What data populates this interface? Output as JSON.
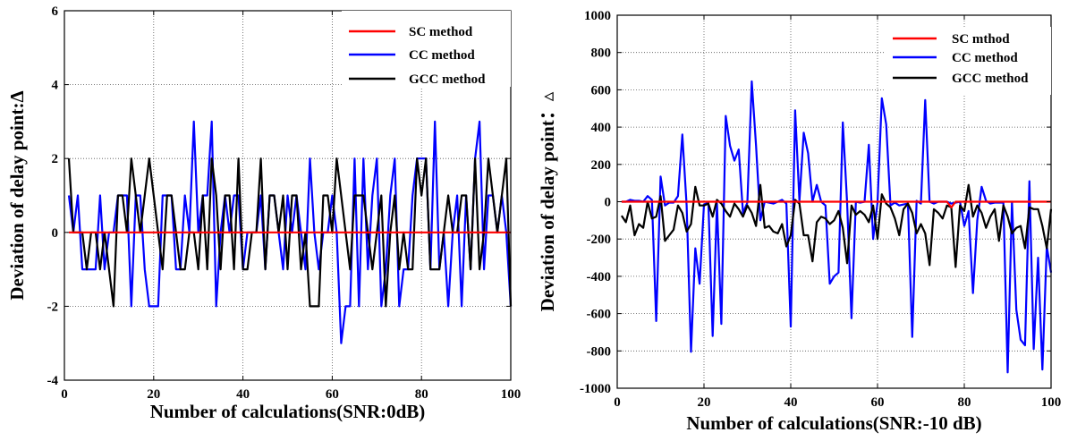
{
  "chart_data": [
    {
      "type": "line",
      "xlabel": "Number of calculations(SNR:0dB)",
      "ylabel": "Deviation of delay point:Δ",
      "xlim": [
        0,
        100
      ],
      "ylim": [
        -4,
        6
      ],
      "xticks": [
        0,
        20,
        40,
        60,
        80,
        100
      ],
      "xtick_labels": [
        "0",
        "20",
        "40",
        "60",
        "80",
        "100"
      ],
      "yticks": [
        -4,
        -2,
        0,
        2,
        4,
        6
      ],
      "ytick_labels": [
        "-4",
        "-2",
        "0",
        "2",
        "4",
        "6"
      ],
      "grid": true,
      "legend_position": "top-right",
      "x": [
        1,
        2,
        3,
        4,
        5,
        6,
        7,
        8,
        9,
        10,
        11,
        12,
        13,
        14,
        15,
        16,
        17,
        18,
        19,
        20,
        21,
        22,
        23,
        24,
        25,
        26,
        27,
        28,
        29,
        30,
        31,
        32,
        33,
        34,
        35,
        36,
        37,
        38,
        39,
        40,
        41,
        42,
        43,
        44,
        45,
        46,
        47,
        48,
        49,
        50,
        51,
        52,
        53,
        54,
        55,
        56,
        57,
        58,
        59,
        60,
        61,
        62,
        63,
        64,
        65,
        66,
        67,
        68,
        69,
        70,
        71,
        72,
        73,
        74,
        75,
        76,
        77,
        78,
        79,
        80,
        81,
        82,
        83,
        84,
        85,
        86,
        87,
        88,
        89,
        90,
        91,
        92,
        93,
        94,
        95,
        96,
        97,
        98,
        99,
        100
      ],
      "series": [
        {
          "name": "SC method",
          "color": "#ff0000",
          "values": [
            0,
            0,
            0,
            0,
            0,
            0,
            0,
            0,
            0,
            0,
            0,
            0,
            0,
            0,
            0,
            0,
            0,
            0,
            0,
            0,
            0,
            0,
            0,
            0,
            0,
            0,
            0,
            0,
            0,
            0,
            0,
            0,
            0,
            0,
            0,
            0,
            0,
            0,
            0,
            0,
            0,
            0,
            0,
            0,
            0,
            0,
            0,
            0,
            0,
            0,
            0,
            0,
            0,
            0,
            0,
            0,
            0,
            0,
            0,
            0,
            0,
            0,
            0,
            0,
            0,
            0,
            0,
            0,
            0,
            0,
            0,
            0,
            0,
            0,
            0,
            0,
            0,
            0,
            0,
            0,
            0,
            0,
            0,
            0,
            0,
            0,
            0,
            0,
            0,
            0,
            0,
            0,
            0,
            0,
            0,
            0,
            0,
            0,
            0,
            0
          ]
        },
        {
          "name": "CC method",
          "color": "#0000ff",
          "values": [
            1,
            0,
            1,
            -1,
            -1,
            -1,
            -1,
            1,
            -1,
            0,
            0,
            1,
            1,
            1,
            -2,
            1,
            1,
            -1,
            -2,
            -2,
            -2,
            1,
            1,
            1,
            -1,
            -1,
            1,
            0,
            3,
            0,
            1,
            1,
            3,
            -2,
            0,
            1,
            0,
            1,
            1,
            -1,
            0,
            0,
            0,
            1,
            -1,
            1,
            1,
            0,
            -1,
            1,
            0,
            1,
            0,
            -1,
            2,
            0,
            -1,
            0,
            0,
            1,
            0,
            -3,
            -2,
            -2,
            2,
            -2,
            2,
            -1,
            1,
            2,
            -2,
            -1,
            1,
            2,
            -2,
            -1,
            -1,
            1,
            2,
            2,
            2,
            -1,
            3,
            -1,
            0,
            -2,
            0,
            1,
            -2,
            1,
            -1,
            2,
            3,
            -1,
            1,
            1,
            0,
            1,
            0,
            -2
          ]
        },
        {
          "name": "GCC method",
          "color": "#000000",
          "values": [
            2,
            0,
            0,
            0,
            -1,
            0,
            0,
            -1,
            0,
            -1,
            -2,
            1,
            1,
            0,
            2,
            1,
            0,
            1,
            2,
            1,
            0,
            -1,
            1,
            1,
            0,
            -1,
            -1,
            0,
            0,
            -1,
            1,
            -1,
            2,
            1,
            -1,
            1,
            1,
            -1,
            2,
            -1,
            -1,
            0,
            0,
            2,
            -1,
            1,
            1,
            0,
            1,
            -1,
            1,
            1,
            -1,
            0,
            -2,
            -2,
            -2,
            1,
            1,
            0,
            2,
            1,
            0,
            -1,
            1,
            1,
            1,
            0,
            -1,
            0,
            1,
            -2,
            0,
            1,
            -1,
            0,
            -1,
            -1,
            2,
            1,
            2,
            -1,
            -1,
            -1,
            0,
            1,
            0,
            0,
            1,
            1,
            -1,
            2,
            -1,
            0,
            2,
            1,
            0,
            1,
            2,
            -2
          ]
        }
      ]
    },
    {
      "type": "line",
      "xlabel": "Number of calculations(SNR:-10 dB)",
      "ylabel": "Deviation of delay point：▵",
      "xlim": [
        0,
        100
      ],
      "ylim": [
        -1000,
        1000
      ],
      "xticks": [
        0,
        20,
        40,
        60,
        80,
        100
      ],
      "xtick_labels": [
        "0",
        "20",
        "40",
        "60",
        "80",
        "100"
      ],
      "yticks": [
        -1000,
        -800,
        -600,
        -400,
        -200,
        0,
        200,
        400,
        600,
        800,
        1000
      ],
      "ytick_labels": [
        "-1000",
        "-800",
        "-600",
        "-400",
        "-200",
        "0",
        "200",
        "400",
        "600",
        "800",
        "1000"
      ],
      "grid": true,
      "legend_position": "top-right",
      "x": [
        1,
        2,
        3,
        4,
        5,
        6,
        7,
        8,
        9,
        10,
        11,
        12,
        13,
        14,
        15,
        16,
        17,
        18,
        19,
        20,
        21,
        22,
        23,
        24,
        25,
        26,
        27,
        28,
        29,
        30,
        31,
        32,
        33,
        34,
        35,
        36,
        37,
        38,
        39,
        40,
        41,
        42,
        43,
        44,
        45,
        46,
        47,
        48,
        49,
        50,
        51,
        52,
        53,
        54,
        55,
        56,
        57,
        58,
        59,
        60,
        61,
        62,
        63,
        64,
        65,
        66,
        67,
        68,
        69,
        70,
        71,
        72,
        73,
        74,
        75,
        76,
        77,
        78,
        79,
        80,
        81,
        82,
        83,
        84,
        85,
        86,
        87,
        88,
        89,
        90,
        91,
        92,
        93,
        94,
        95,
        96,
        97,
        98,
        99,
        100
      ],
      "series": [
        {
          "name": "SC mthod",
          "color": "#ff0000",
          "values": [
            0,
            0,
            0,
            0,
            0,
            0,
            0,
            0,
            0,
            0,
            0,
            0,
            0,
            0,
            0,
            0,
            0,
            0,
            0,
            0,
            0,
            0,
            0,
            0,
            0,
            0,
            0,
            0,
            0,
            0,
            0,
            0,
            0,
            0,
            0,
            0,
            0,
            0,
            0,
            0,
            0,
            0,
            0,
            0,
            0,
            0,
            0,
            0,
            0,
            0,
            0,
            0,
            0,
            0,
            0,
            0,
            0,
            0,
            0,
            0,
            0,
            0,
            0,
            0,
            0,
            0,
            0,
            0,
            0,
            0,
            0,
            0,
            0,
            0,
            0,
            0,
            -30,
            0,
            0,
            0,
            0,
            0,
            0,
            0,
            0,
            0,
            0,
            0,
            0,
            0,
            0,
            0,
            0,
            0,
            0,
            0,
            0,
            0,
            0,
            0
          ]
        },
        {
          "name": "CC method",
          "color": "#0000ff",
          "values": [
            0,
            0,
            10,
            5,
            5,
            0,
            30,
            10,
            -640,
            135,
            -20,
            -5,
            -5,
            30,
            360,
            -20,
            -805,
            -250,
            -440,
            -15,
            -5,
            -720,
            -10,
            -655,
            460,
            300,
            220,
            280,
            -60,
            -5,
            645,
            300,
            -100,
            0,
            -5,
            -10,
            0,
            10,
            -10,
            -670,
            490,
            5,
            370,
            260,
            0,
            90,
            0,
            -20,
            -440,
            -400,
            -380,
            425,
            -5,
            -625,
            0,
            -5,
            0,
            305,
            -200,
            -5,
            555,
            415,
            -20,
            -5,
            -20,
            -15,
            -10,
            -725,
            5,
            -10,
            545,
            0,
            -10,
            0,
            0,
            0,
            -10,
            -5,
            0,
            -130,
            -50,
            -490,
            -100,
            80,
            5,
            -10,
            -5,
            -5,
            -5,
            -915,
            0,
            -580,
            -740,
            -770,
            110,
            -790,
            -300,
            -900,
            -240,
            -380
          ]
        },
        {
          "name": "GCC method",
          "color": "#000000",
          "values": [
            -75,
            -110,
            -20,
            -180,
            -120,
            -140,
            0,
            -90,
            -80,
            30,
            -210,
            -180,
            -150,
            -20,
            -60,
            -160,
            -120,
            80,
            -20,
            -20,
            -10,
            -80,
            10,
            -10,
            -50,
            -80,
            -10,
            -40,
            -80,
            -20,
            -60,
            -130,
            90,
            -140,
            -130,
            -160,
            -170,
            -120,
            -240,
            -180,
            10,
            -10,
            -180,
            -180,
            -320,
            -110,
            -80,
            -90,
            -120,
            -100,
            -50,
            -140,
            -330,
            -20,
            -70,
            -50,
            -70,
            -110,
            -20,
            -200,
            40,
            -10,
            -30,
            -90,
            -180,
            -40,
            -10,
            -60,
            -170,
            -120,
            -170,
            -340,
            -40,
            -60,
            -90,
            -20,
            -30,
            -350,
            -20,
            -50,
            90,
            -80,
            -20,
            -60,
            -140,
            -80,
            -40,
            -210,
            -20,
            -80,
            -170,
            -140,
            -130,
            -250,
            -30,
            -40,
            -40,
            -130,
            -250,
            -40
          ]
        }
      ]
    }
  ]
}
